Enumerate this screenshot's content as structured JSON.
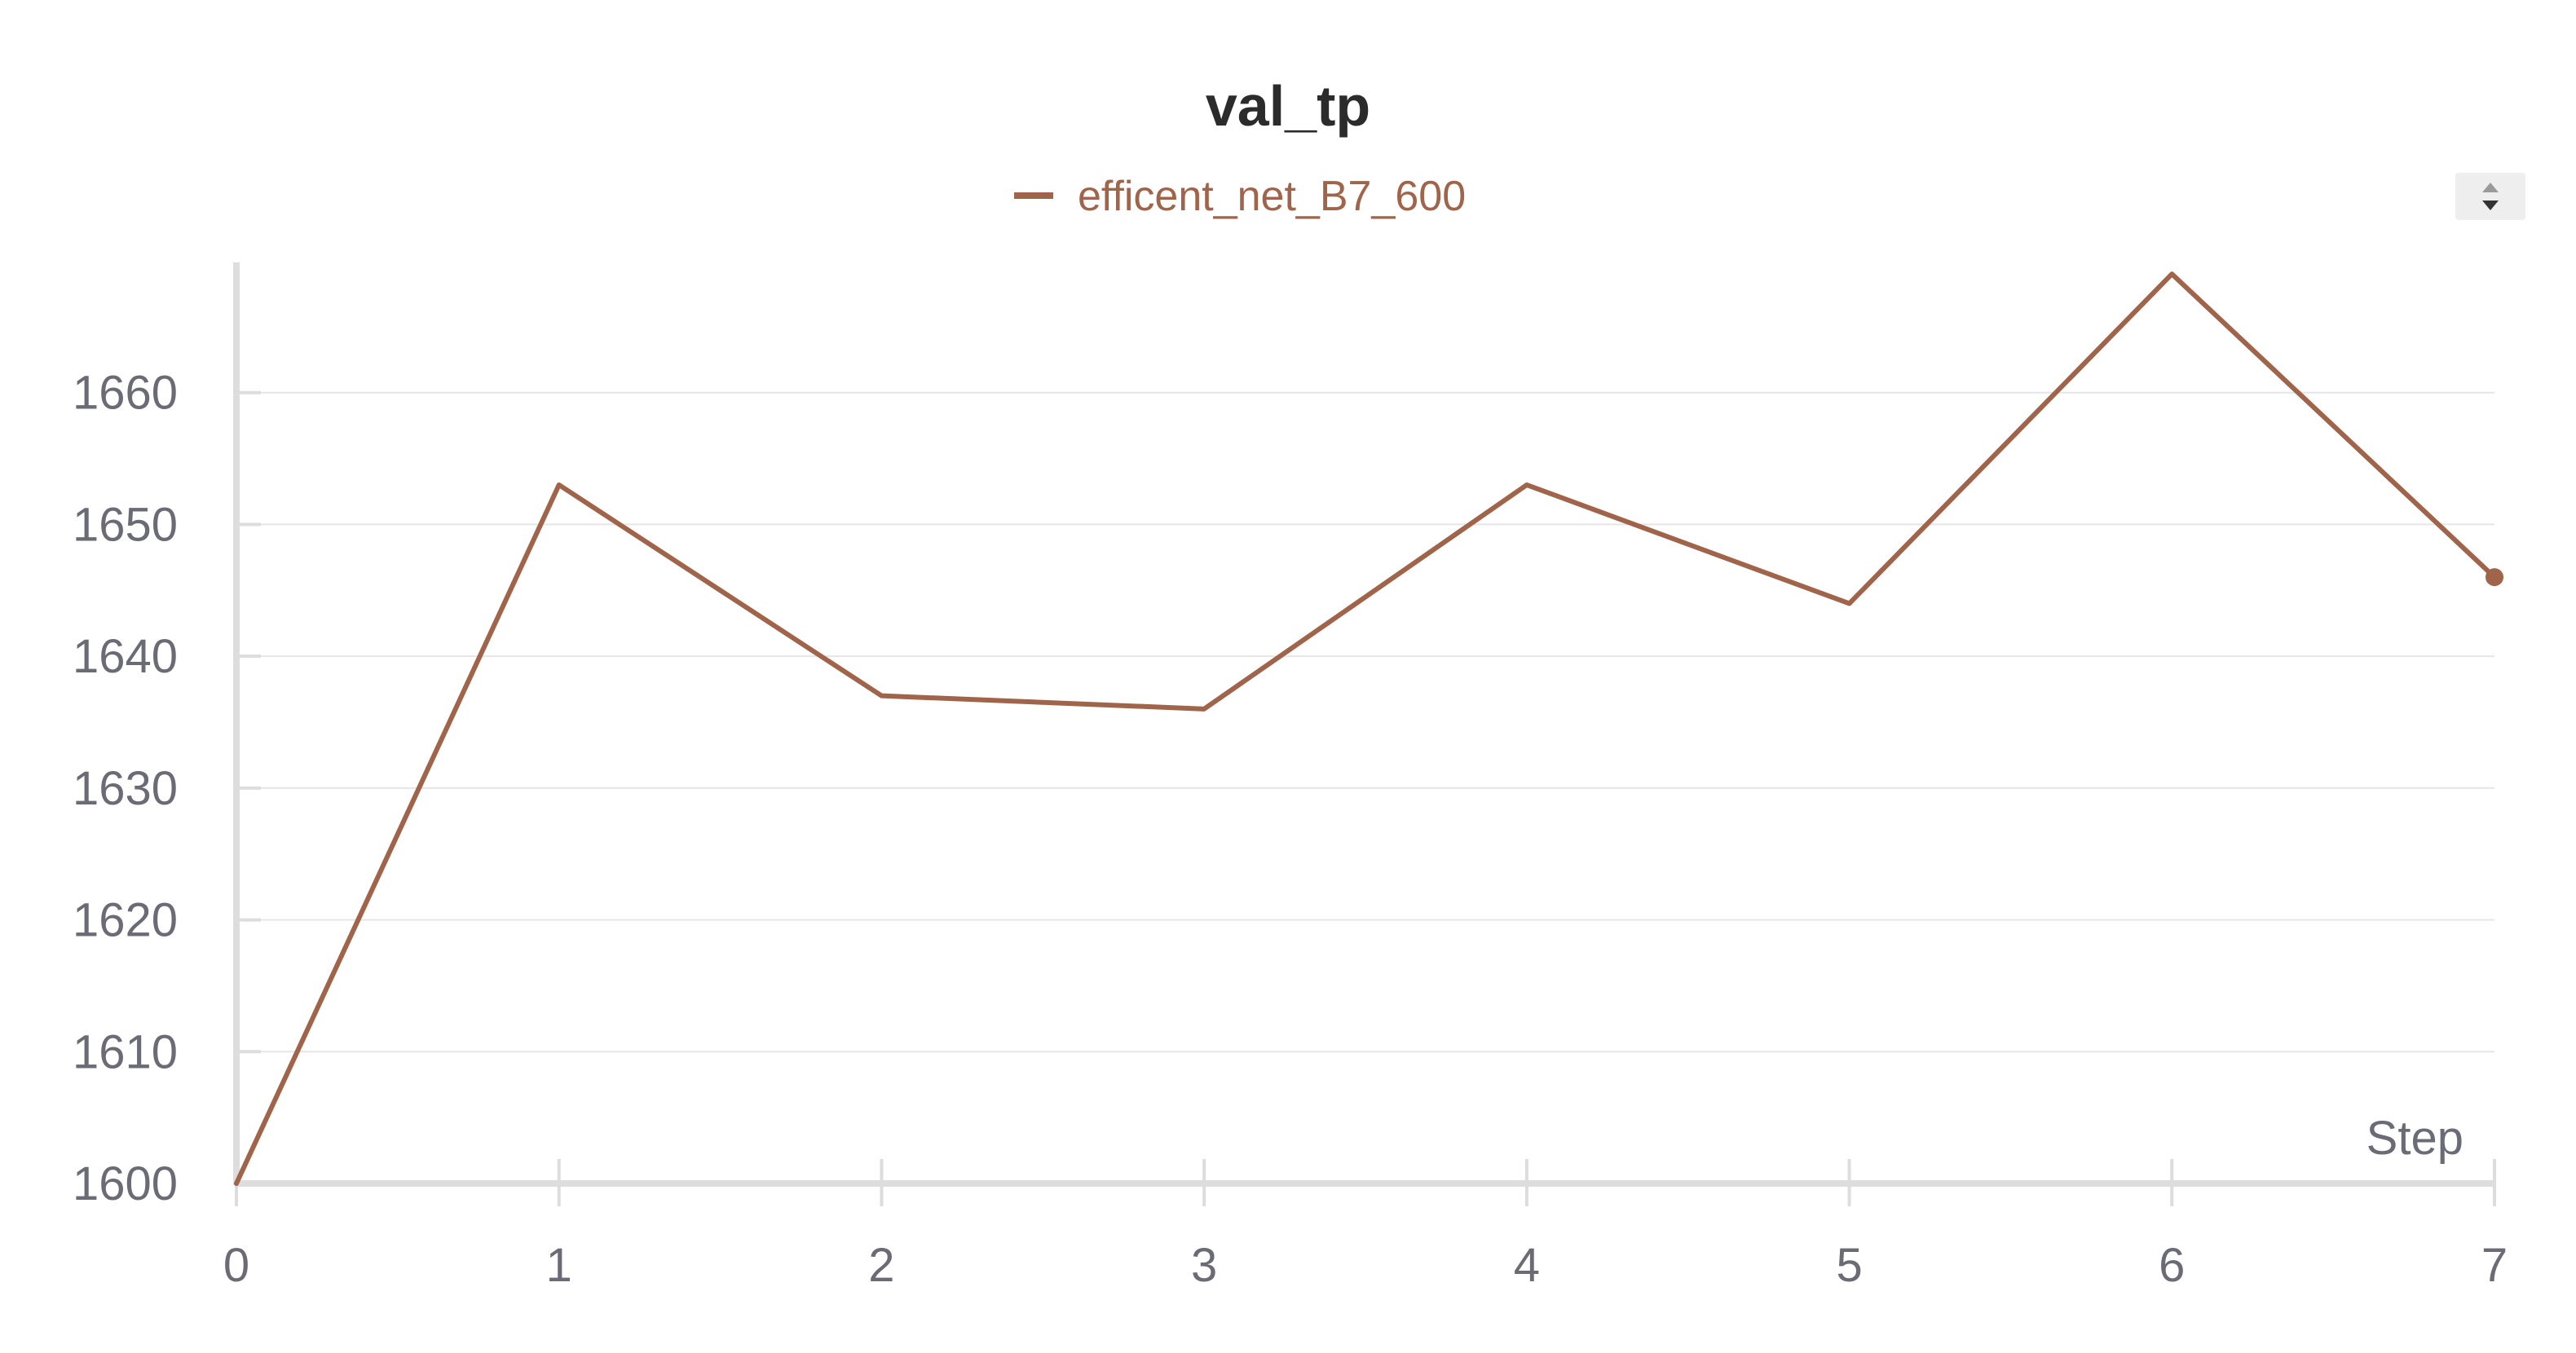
{
  "chart_data": {
    "type": "line",
    "title": "val_tp",
    "xlabel": "Step",
    "ylabel": "",
    "x": [
      0,
      1,
      2,
      3,
      4,
      5,
      6,
      7
    ],
    "series": [
      {
        "name": "efficent_net_B7_600",
        "color": "#a0644b",
        "values": [
          1600,
          1653,
          1637,
          1636,
          1653,
          1644,
          1669,
          1646
        ]
      }
    ],
    "xlim": [
      0,
      7
    ],
    "ylim": [
      1600,
      1670
    ],
    "xticks": [
      "0",
      "1",
      "2",
      "3",
      "4",
      "5",
      "6",
      "7"
    ],
    "yticks": [
      "1600",
      "1610",
      "1620",
      "1630",
      "1640",
      "1650",
      "1660"
    ],
    "grid": true,
    "legend_position": "top-center"
  },
  "controls": {
    "legend_scroll_icon": "up-down-arrows-icon"
  }
}
